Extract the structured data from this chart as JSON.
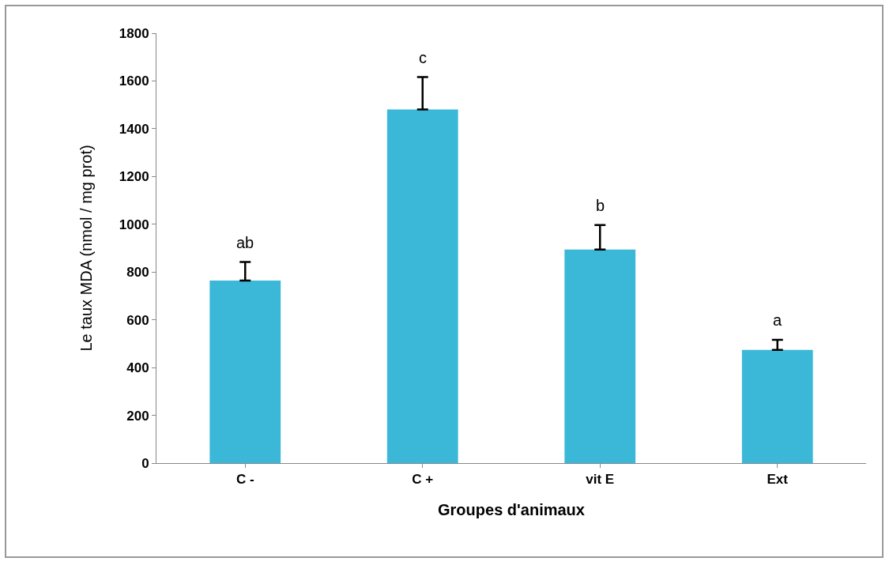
{
  "chart_data": {
    "type": "bar",
    "xlabel": "Groupes d'animaux",
    "ylabel": "Le taux MDA (nmol / mg prot)",
    "categories": [
      "C -",
      "C +",
      "vit E",
      "Ext"
    ],
    "values": [
      764,
      1481,
      894,
      474
    ],
    "errors": [
      [
        764,
        842
      ],
      [
        1481,
        1616
      ],
      [
        894,
        997
      ],
      [
        474,
        516
      ]
    ],
    "color": "#3bb8d8",
    "ylim": [
      0,
      1800
    ],
    "yticks": [
      0,
      200,
      400,
      600,
      800,
      1000,
      1200,
      1400,
      1600,
      1800
    ],
    "grid": false,
    "annotations": [
      {
        "text": "ab",
        "x": "C -",
        "y": 842
      },
      {
        "text": "c",
        "x": "C +",
        "y": 1616
      },
      {
        "text": "b",
        "x": "vit E",
        "y": 997
      },
      {
        "text": "a",
        "x": "Ext",
        "y": 516
      }
    ]
  }
}
